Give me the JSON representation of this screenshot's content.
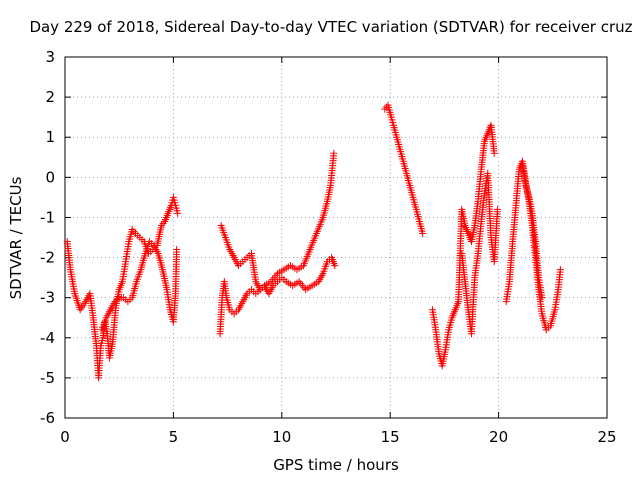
{
  "chart_data": {
    "type": "scatter",
    "title": "Day 229 of 2018, Sidereal Day-to-day VTEC variation (SDTVAR) for receiver cruz",
    "xlabel": "GPS time / hours",
    "ylabel": "SDTVAR / TECUs",
    "xlim": [
      0,
      25
    ],
    "ylim": [
      -6,
      3
    ],
    "xticks": [
      0,
      5,
      10,
      15,
      20,
      25
    ],
    "yticks": [
      -6,
      -5,
      -4,
      -3,
      -2,
      -1,
      0,
      1,
      2,
      3
    ],
    "grid": true,
    "marker": "+",
    "color": "#ff0000",
    "series": [
      {
        "name": "SDTVAR",
        "segments": [
          {
            "x": [
              0.1,
              0.25,
              0.45,
              0.7,
              0.95,
              1.15,
              1.3,
              1.45,
              1.55,
              1.65,
              1.75,
              1.85,
              1.95,
              2.05,
              2.2,
              2.35,
              2.5,
              2.65,
              2.8,
              2.95,
              3.1,
              3.25,
              3.45,
              3.65,
              3.85,
              4.05,
              4.25,
              4.45,
              4.6,
              4.75,
              4.9,
              5.0,
              5.1,
              5.2
            ],
            "y": [
              -1.6,
              -2.3,
              -2.9,
              -3.3,
              -3.1,
              -2.9,
              -3.5,
              -4.2,
              -5.0,
              -4.2,
              -4.0,
              -3.6,
              -3.9,
              -4.5,
              -4.1,
              -3.2,
              -2.8,
              -2.6,
              -2.1,
              -1.6,
              -1.3,
              -1.4,
              -1.5,
              -1.6,
              -1.9,
              -1.8,
              -1.7,
              -1.2,
              -1.1,
              -0.9,
              -0.7,
              -0.5,
              -0.7,
              -0.9
            ]
          },
          {
            "x": [
              1.7,
              1.9,
              2.1,
              2.3,
              2.5,
              2.7,
              2.9,
              3.1,
              3.3,
              3.5,
              3.7,
              3.9,
              4.1,
              4.3,
              4.5,
              4.7,
              4.85,
              5.0,
              5.1,
              5.15
            ],
            "y": [
              -3.8,
              -3.5,
              -3.3,
              -3.1,
              -3.0,
              -3.0,
              -3.1,
              -3.0,
              -2.6,
              -2.3,
              -1.9,
              -1.6,
              -1.7,
              -1.9,
              -2.3,
              -2.8,
              -3.3,
              -3.6,
              -2.9,
              -1.8
            ]
          },
          {
            "x": [
              7.15,
              7.25,
              7.35,
              7.45,
              7.6,
              7.8,
              8.0,
              8.2,
              8.4,
              8.6,
              8.8,
              9.0,
              9.2,
              9.5,
              9.8,
              10.1,
              10.4,
              10.7,
              11.0,
              11.3,
              11.6,
              11.9,
              12.1,
              12.25,
              12.4
            ],
            "y": [
              -3.9,
              -3.0,
              -2.6,
              -3.0,
              -3.3,
              -3.4,
              -3.3,
              -3.1,
              -2.9,
              -2.8,
              -2.9,
              -2.8,
              -2.7,
              -2.6,
              -2.4,
              -2.3,
              -2.2,
              -2.3,
              -2.2,
              -1.8,
              -1.4,
              -1.0,
              -0.6,
              -0.2,
              0.6
            ]
          },
          {
            "x": [
              7.2,
              7.4,
              7.6,
              7.8,
              8.0,
              8.2,
              8.4,
              8.6,
              8.8,
              9.0,
              9.2,
              9.4,
              9.6,
              9.8,
              10.0,
              10.2,
              10.5,
              10.8,
              11.1,
              11.4,
              11.7,
              11.9,
              12.1,
              12.3,
              12.45
            ],
            "y": [
              -1.2,
              -1.5,
              -1.8,
              -2.0,
              -2.2,
              -2.1,
              -2.0,
              -1.9,
              -2.6,
              -2.8,
              -2.7,
              -2.9,
              -2.7,
              -2.6,
              -2.5,
              -2.6,
              -2.7,
              -2.6,
              -2.8,
              -2.7,
              -2.6,
              -2.4,
              -2.1,
              -2.0,
              -2.2
            ]
          },
          {
            "x": [
              14.75,
              14.9,
              15.05,
              15.15,
              15.3,
              15.45,
              15.6,
              15.75,
              15.9,
              16.05,
              16.2,
              16.35,
              16.5
            ],
            "y": [
              1.7,
              1.8,
              1.5,
              1.3,
              1.0,
              0.7,
              0.4,
              0.1,
              -0.2,
              -0.5,
              -0.8,
              -1.1,
              -1.4
            ]
          },
          {
            "x": [
              16.95,
              17.1,
              17.25,
              17.4,
              17.55,
              17.7,
              17.85,
              18.0,
              18.15,
              18.3,
              18.45,
              18.6,
              18.75,
              18.9,
              19.05,
              19.2,
              19.35,
              19.5,
              19.65,
              19.8
            ],
            "y": [
              -3.3,
              -3.8,
              -4.4,
              -4.7,
              -4.3,
              -3.8,
              -3.5,
              -3.3,
              -3.1,
              -0.8,
              -1.2,
              -1.4,
              -1.6,
              -1.2,
              -0.6,
              0.2,
              0.9,
              1.1,
              1.3,
              0.6
            ]
          },
          {
            "x": [
              18.3,
              18.45,
              18.6,
              18.75,
              18.9,
              19.05,
              19.2,
              19.35,
              19.5,
              19.65,
              19.8,
              19.95
            ],
            "y": [
              -1.9,
              -2.6,
              -3.3,
              -3.9,
              -2.5,
              -1.9,
              -1.1,
              -0.4,
              0.1,
              -1.5,
              -2.1,
              -0.8
            ]
          },
          {
            "x": [
              20.35,
              20.5,
              20.65,
              20.8,
              20.95,
              21.1,
              21.25,
              21.4,
              21.55,
              21.7,
              21.85,
              22.0,
              22.2,
              22.4,
              22.6,
              22.75,
              22.85
            ],
            "y": [
              -3.1,
              -2.6,
              -1.6,
              -0.7,
              0.2,
              0.4,
              -0.1,
              -0.6,
              -1.2,
              -2.0,
              -2.8,
              -3.4,
              -3.8,
              -3.7,
              -3.3,
              -2.8,
              -2.3
            ]
          },
          {
            "x": [
              21.1,
              21.25,
              21.4,
              21.55,
              21.7,
              21.85,
              22.0
            ],
            "y": [
              0.3,
              -0.2,
              -0.5,
              -0.9,
              -1.6,
              -2.5,
              -3.0
            ]
          }
        ]
      }
    ]
  }
}
